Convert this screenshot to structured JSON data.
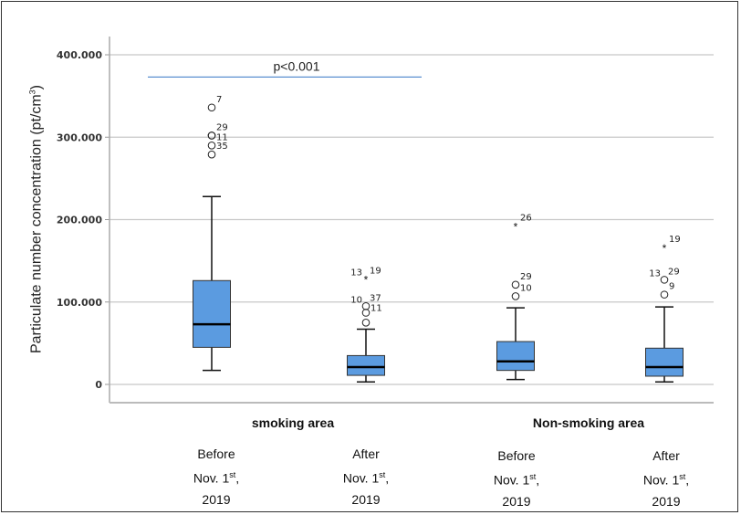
{
  "chart_data": {
    "type": "boxplot",
    "ylabel": "Particulate number concentration (pt/cm",
    "ylabel_sup": "3",
    "ylabel_close": ")",
    "ylim": [
      0,
      400000
    ],
    "yticks": [
      0,
      100000,
      200000,
      300000,
      400000
    ],
    "ytick_labels": [
      "0",
      "100.000",
      "200.000",
      "300.000",
      "400.000"
    ],
    "grid": true,
    "box_color": "#5b9be0",
    "groups": [
      "smoking area",
      "Non-smoking area"
    ],
    "categories": [
      {
        "line1": "Before",
        "line2": "Nov. 1",
        "sup": "st",
        "line2_end": ",",
        "line3": "2019"
      },
      {
        "line1": "After",
        "line2": "Nov. 1",
        "sup": "st",
        "line2_end": ",",
        "line3": "2019"
      },
      {
        "line1": "Before",
        "line2": "Nov. 1",
        "sup": "st",
        "line2_end": ",",
        "line3": "2019"
      },
      {
        "line1": "After",
        "line2": "Nov. 1",
        "sup": "st",
        "line2_end": ",",
        "line3": "2019"
      }
    ],
    "boxes": [
      {
        "min": 17000,
        "q1": 45000,
        "median": 73000,
        "q3": 126000,
        "max": 228000,
        "outliers": [
          {
            "value": 336000,
            "type": "circle",
            "label": "7"
          },
          {
            "value": 302000,
            "type": "circle",
            "label": "29"
          },
          {
            "value": 302000,
            "type": "circle",
            "label": "11"
          },
          {
            "value": 290000,
            "type": "circle",
            "label": ""
          },
          {
            "value": 279000,
            "type": "circle",
            "label": "35"
          }
        ]
      },
      {
        "min": 3000,
        "q1": 11000,
        "median": 21000,
        "q3": 35000,
        "max": 67000,
        "outliers": [
          {
            "value": 128000,
            "type": "star",
            "label": "13 19"
          },
          {
            "value": 95000,
            "type": "circle",
            "label": "10 37"
          },
          {
            "value": 87000,
            "type": "circle",
            "label": "11"
          },
          {
            "value": 75000,
            "type": "circle",
            "label": ""
          }
        ]
      },
      {
        "min": 6000,
        "q1": 17000,
        "median": 28000,
        "q3": 52000,
        "max": 93000,
        "outliers": [
          {
            "value": 192000,
            "type": "star",
            "label": "26"
          },
          {
            "value": 121000,
            "type": "circle",
            "label": "29"
          },
          {
            "value": 107000,
            "type": "circle",
            "label": "10"
          }
        ]
      },
      {
        "min": 3000,
        "q1": 10000,
        "median": 21000,
        "q3": 44000,
        "max": 94000,
        "outliers": [
          {
            "value": 166000,
            "type": "star",
            "label": "19"
          },
          {
            "value": 127000,
            "type": "circle",
            "label": "13 29"
          },
          {
            "value": 109000,
            "type": "circle",
            "label": "9"
          }
        ]
      }
    ],
    "annotation": {
      "text": "p<0.001",
      "value": 373000,
      "color": "#5b8fd0"
    }
  }
}
